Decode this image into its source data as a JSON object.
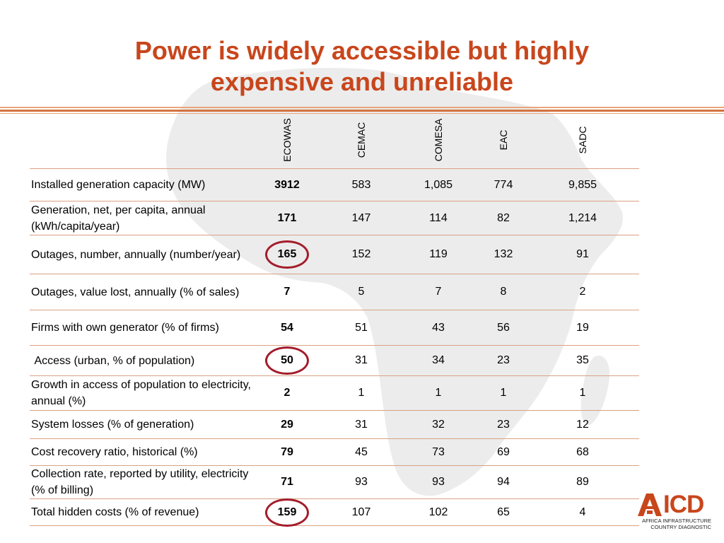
{
  "title": {
    "line1": "Power is widely accessible but highly",
    "line2": "expensive and unreliable"
  },
  "columns": [
    "ECOWAS",
    "CEMAC",
    "COMESA",
    "EAC",
    "SADC"
  ],
  "rows": [
    {
      "label": "Installed generation capacity (MW)",
      "values": [
        "3912",
        "583",
        "1,085",
        "774",
        "9,855"
      ],
      "circled": false
    },
    {
      "label": "Generation, net, per capita, annual (kWh/capita/year)",
      "values": [
        "171",
        "147",
        "114",
        "82",
        "1,214"
      ],
      "circled": false
    },
    {
      "label": "Outages, number, annually (number/year)",
      "values": [
        "165",
        "152",
        "119",
        "132",
        "91"
      ],
      "circled": true
    },
    {
      "label": "Outages, value lost, annually (% of sales)",
      "values": [
        "7",
        "5",
        "7",
        "8",
        "2"
      ],
      "circled": false
    },
    {
      "label": "Firms with own generator (% of firms)",
      "values": [
        "54",
        "51",
        "43",
        "56",
        "19"
      ],
      "circled": false
    },
    {
      "label": " Access (urban, % of population)",
      "values": [
        "50",
        "31",
        "34",
        "23",
        "35"
      ],
      "circled": true
    },
    {
      "label": "Growth in access of population to electricity, annual (%)",
      "values": [
        "2",
        "1",
        "1",
        "1",
        "1"
      ],
      "circled": false
    },
    {
      "label": "System losses (% of generation)",
      "values": [
        "29",
        "31",
        "32",
        "23",
        "12"
      ],
      "circled": false
    },
    {
      "label": "Cost recovery ratio, historical (%)",
      "values": [
        "79",
        "45",
        "73",
        "69",
        "68"
      ],
      "circled": false
    },
    {
      "label": "Collection rate, reported by utility, electricity (% of billing)",
      "values": [
        "71",
        "93",
        "93",
        "94",
        "89"
      ],
      "circled": false
    },
    {
      "label": "Total hidden costs (% of revenue)",
      "values": [
        "159",
        "107",
        "102",
        "65",
        "4"
      ],
      "circled": true
    }
  ],
  "logo": {
    "name": "AICD",
    "letters": "ICD",
    "subtitle_line1": "AFRICA INFRASTRUCTURE",
    "subtitle_line2": "COUNTRY DIAGNOSTIC",
    "color": "#c8461c"
  },
  "colors": {
    "title": "#c8461c",
    "circle": "#a31d2b",
    "rule": "#d3733d",
    "map": "#ebebeb"
  }
}
